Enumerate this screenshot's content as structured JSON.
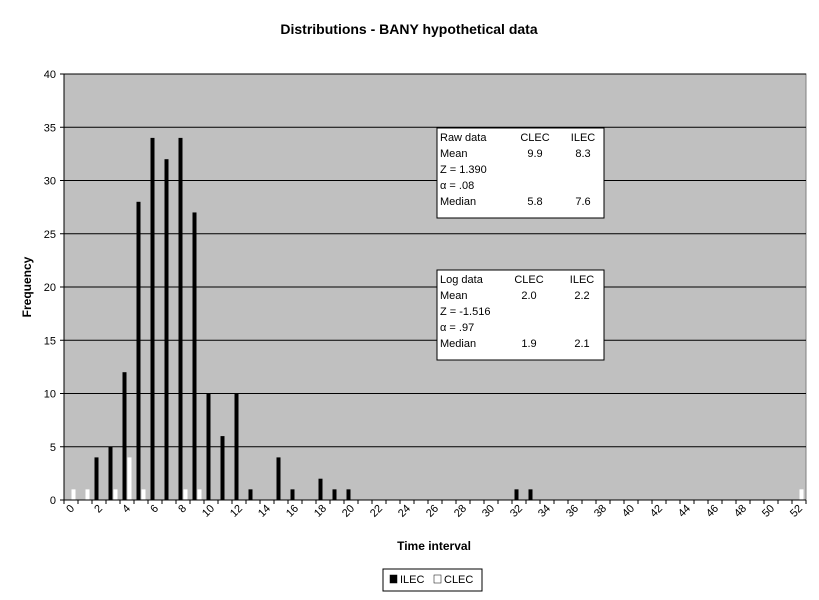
{
  "chart_data": {
    "type": "bar",
    "title": "Distributions - BANY hypothetical data",
    "xlabel": "Time interval",
    "ylabel": "Frequency",
    "ylim": [
      0,
      40
    ],
    "yticks": [
      "0",
      "5",
      "10",
      "15",
      "20",
      "25",
      "30",
      "35",
      "40"
    ],
    "xticks": [
      "0",
      "2",
      "4",
      "6",
      "8",
      "10",
      "12",
      "14",
      "16",
      "18",
      "20",
      "22",
      "24",
      "26",
      "28",
      "30",
      "32",
      "34",
      "36",
      "38",
      "40",
      "42",
      "44",
      "46",
      "48",
      "50",
      "52"
    ],
    "x": [
      0,
      1,
      2,
      3,
      4,
      5,
      6,
      7,
      8,
      9,
      10,
      11,
      12,
      13,
      14,
      15,
      16,
      17,
      18,
      19,
      20,
      21,
      22,
      23,
      24,
      25,
      26,
      27,
      28,
      29,
      30,
      31,
      32,
      33,
      34,
      35,
      36,
      37,
      38,
      39,
      40,
      41,
      42,
      43,
      44,
      45,
      46,
      47,
      48,
      49,
      50,
      51,
      52
    ],
    "series": [
      {
        "name": "ILEC",
        "color": "#000000",
        "values": [
          0,
          0,
          4,
          5,
          12,
          28,
          34,
          32,
          34,
          27,
          10,
          6,
          10,
          1,
          0,
          4,
          1,
          0,
          2,
          1,
          1,
          0,
          0,
          0,
          0,
          0,
          0,
          0,
          0,
          0,
          0,
          0,
          1,
          1,
          0,
          0,
          0,
          0,
          0,
          0,
          0,
          0,
          0,
          0,
          0,
          0,
          0,
          0,
          0,
          0,
          0,
          0,
          0
        ]
      },
      {
        "name": "CLEC",
        "color": "#ffffff",
        "values": [
          1,
          1,
          0,
          1,
          4,
          1,
          0,
          0,
          1,
          1,
          0,
          0,
          0,
          0,
          0,
          0,
          0,
          0,
          0,
          0,
          0,
          0,
          0,
          0,
          0,
          0,
          0,
          0,
          0,
          0,
          0,
          0,
          0,
          0,
          0,
          0,
          0,
          0,
          0,
          0,
          0,
          0,
          0,
          0,
          0,
          0,
          0,
          0,
          0,
          0,
          0,
          0,
          1
        ]
      }
    ],
    "grid": true,
    "plot_background": "#c0c0c0",
    "legend": {
      "placement": "bottom",
      "items": [
        "ILEC",
        "CLEC"
      ]
    },
    "annotations": [
      {
        "name": "raw-data-box",
        "rows": [
          [
            "Raw data",
            "CLEC",
            "ILEC"
          ],
          [
            "Mean",
            "9.9",
            "8.3"
          ],
          [
            "Z = 1.390",
            "",
            ""
          ],
          [
            "α = .08",
            "",
            ""
          ],
          [
            "Median",
            "5.8",
            "7.6"
          ]
        ]
      },
      {
        "name": "log-data-box",
        "rows": [
          [
            "Log data",
            "CLEC",
            "ILEC"
          ],
          [
            "Mean",
            "2.0",
            "2.2"
          ],
          [
            "Z = -1.516",
            "",
            ""
          ],
          [
            "α = .97",
            "",
            ""
          ],
          [
            "Median",
            "1.9",
            "2.1"
          ]
        ]
      }
    ]
  }
}
